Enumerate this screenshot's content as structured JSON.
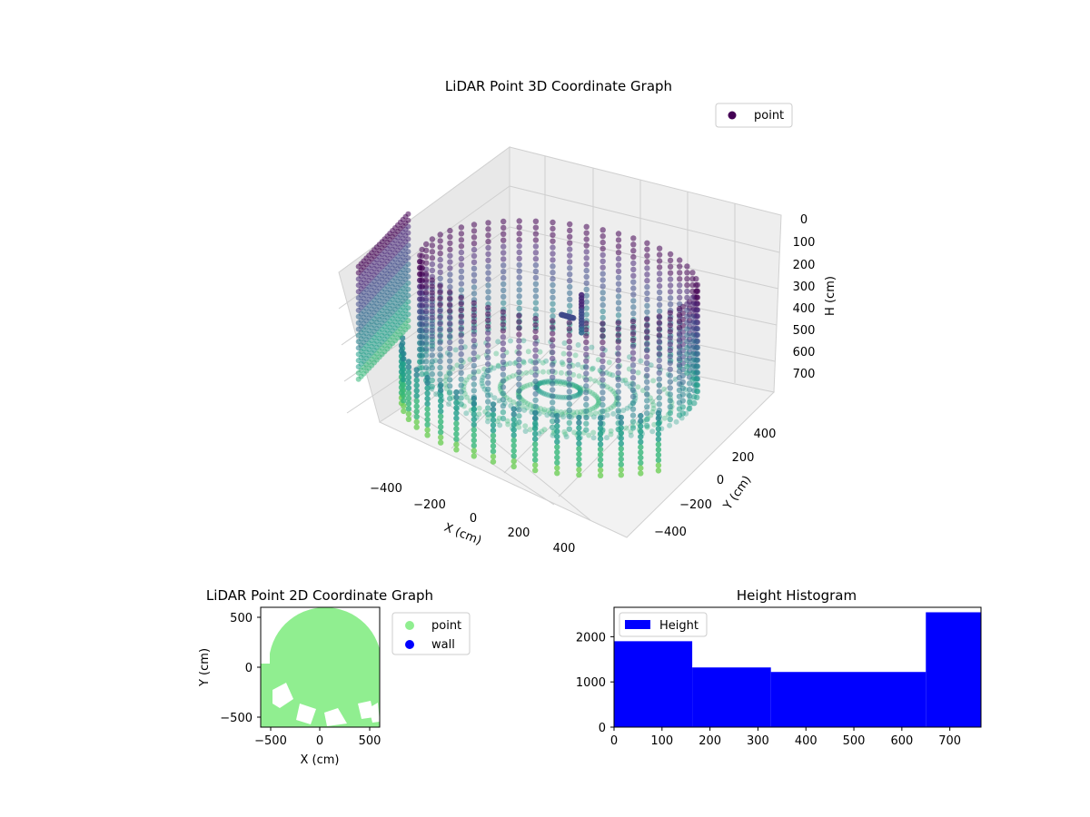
{
  "chart_data": [
    {
      "type": "scatter",
      "projection": "3d",
      "title": "LiDAR Point 3D Coordinate Graph",
      "xlabel": "X (cm)",
      "ylabel": "Y (cm)",
      "zlabel": "H (cm)",
      "x_ticks": [
        "−400",
        "−200",
        "0",
        "200",
        "400"
      ],
      "y_ticks": [
        "−400",
        "−200",
        "0",
        "200",
        "400"
      ],
      "z_ticks": [
        "0",
        "100",
        "200",
        "300",
        "400",
        "500",
        "600",
        "700"
      ],
      "z_inverted": true,
      "legend": [
        "point"
      ],
      "legend_position": "top-right",
      "colormap": "viridis",
      "series": [
        {
          "name": "point",
          "color": "#440154"
        }
      ]
    },
    {
      "type": "scatter",
      "title": "LiDAR Point 2D Coordinate Graph",
      "xlabel": "X (cm)",
      "ylabel": "Y (cm)",
      "xlim": [
        -600,
        600
      ],
      "ylim": [
        -600,
        600
      ],
      "x_ticks": [
        "−500",
        "0",
        "500"
      ],
      "y_ticks": [
        "−500",
        "0",
        "500"
      ],
      "legend_position": "outside-right",
      "series": [
        {
          "name": "point",
          "color": "#90ee90"
        },
        {
          "name": "wall",
          "color": "#0000ff"
        }
      ]
    },
    {
      "type": "bar",
      "title": "Height Histogram",
      "legend": [
        "Height"
      ],
      "legend_position": "top-left",
      "color": "#0000ff",
      "bins": [
        {
          "start": 0,
          "end": 163,
          "value": 1900
        },
        {
          "start": 163,
          "end": 327,
          "value": 1320
        },
        {
          "start": 327,
          "end": 650,
          "value": 1220
        },
        {
          "start": 650,
          "end": 765,
          "value": 2540
        }
      ],
      "xlim": [
        0,
        765
      ],
      "ylim": [
        0,
        2650
      ],
      "x_ticks": [
        "0",
        "100",
        "200",
        "300",
        "400",
        "500",
        "600",
        "700"
      ],
      "y_ticks": [
        "0",
        "1000",
        "2000"
      ]
    }
  ]
}
